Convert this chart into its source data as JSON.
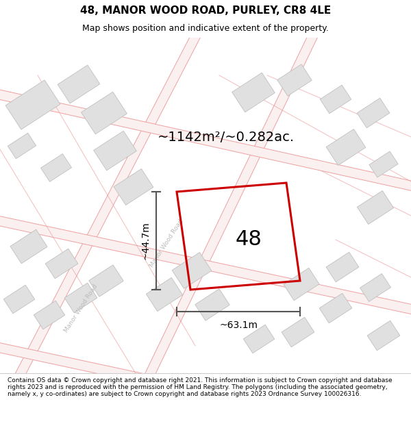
{
  "title_line1": "48, MANOR WOOD ROAD, PURLEY, CR8 4LE",
  "title_line2": "Map shows position and indicative extent of the property.",
  "area_text": "~1142m²/~0.282ac.",
  "label_48": "48",
  "dim_height": "~44.7m",
  "dim_width": "~63.1m",
  "road_label1": "Manor Wood Road",
  "road_label2": "Manor Wood Road",
  "footer": "Contains OS data © Crown copyright and database right 2021. This information is subject to Crown copyright and database rights 2023 and is reproduced with the permission of HM Land Registry. The polygons (including the associated geometry, namely x, y co-ordinates) are subject to Crown copyright and database rights 2023 Ordnance Survey 100026316.",
  "map_bg": "#ffffff",
  "road_line_color": "#f0a0a0",
  "road_fill_color": "#faf0f0",
  "building_fill": "#e0e0e0",
  "building_edge": "#c0c0c0",
  "property_color": "#cc0000",
  "dim_color": "#555555",
  "title_bg": "#ffffff",
  "footer_bg": "#ffffff",
  "title_fs1": 11,
  "title_fs2": 9,
  "area_fs": 14,
  "label_fs": 22,
  "dim_fs": 10,
  "footer_fs": 6.5
}
